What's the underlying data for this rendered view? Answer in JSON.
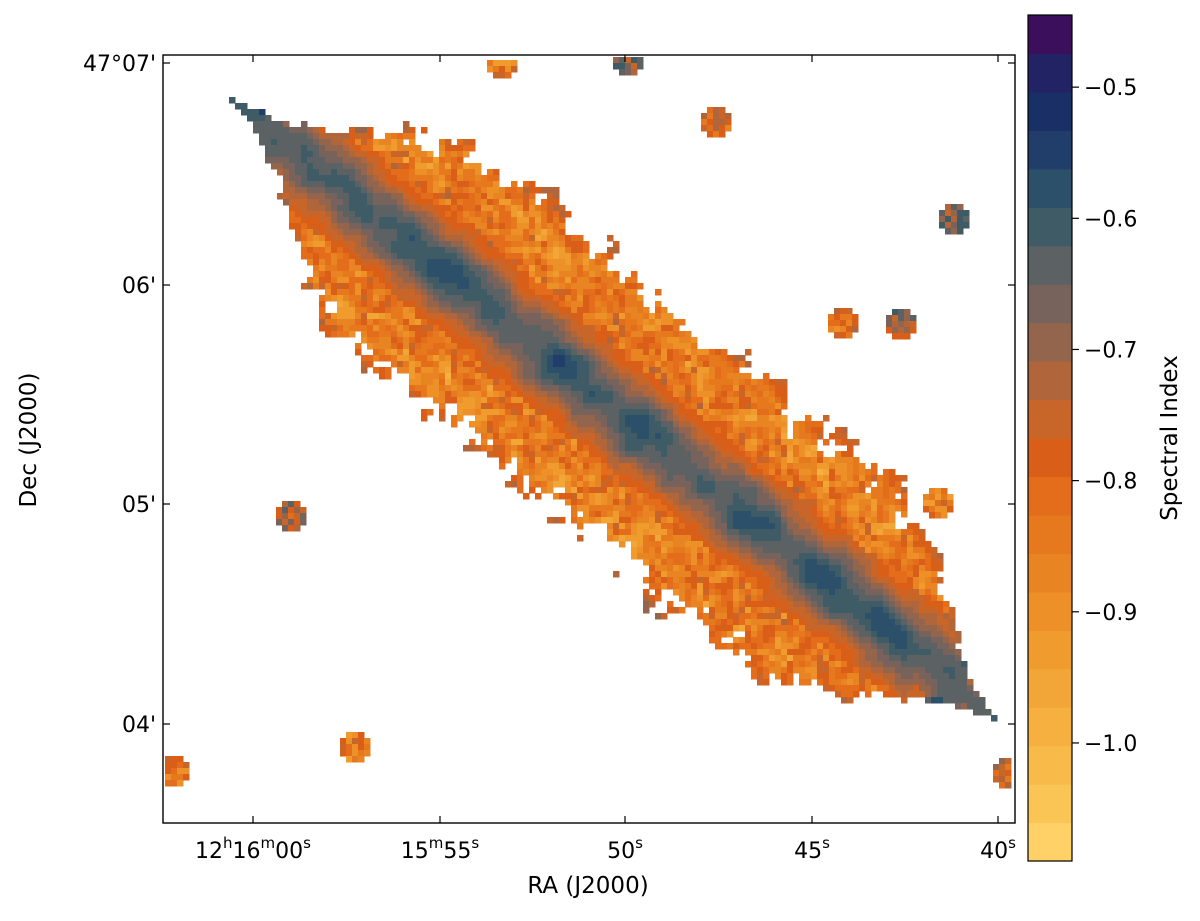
{
  "chart_data": {
    "type": "heatmap",
    "xlabel": "RA (J2000)",
    "ylabel": "Dec (J2000)",
    "colorbar_label": "Spectral Index",
    "x_ticks": [
      {
        "h": "12",
        "m": "16",
        "s": "00",
        "style": "hms"
      },
      {
        "m": "15",
        "s": "55",
        "style": "ms"
      },
      {
        "s": "50",
        "style": "s"
      },
      {
        "s": "45",
        "style": "s"
      },
      {
        "s": "40",
        "style": "s"
      }
    ],
    "y_ticks": [
      "47°07'",
      "06'",
      "05'",
      "04'"
    ],
    "colorbar_ticks": [
      "−0.5",
      "−0.6",
      "−0.7",
      "−0.8",
      "−0.9",
      "−1.0"
    ],
    "colorbar_tick_values": [
      -0.5,
      -0.6,
      -0.7,
      -0.8,
      -0.9,
      -1.0
    ],
    "color_range": [
      -1.09,
      -0.445
    ],
    "colormap_bands": [
      "#ffd166",
      "#fbc555",
      "#f8bb4a",
      "#f5b040",
      "#f2a637",
      "#ef9b2e",
      "#ec9027",
      "#e98422",
      "#e6781e",
      "#e36d1b",
      "#d95f19",
      "#c8662a",
      "#b0663a",
      "#93654c",
      "#77635c",
      "#5c6264",
      "#3f5b66",
      "#2c4f6a",
      "#213e6b",
      "#1a2f66",
      "#222365",
      "#3b0f5c"
    ],
    "grid": false,
    "series": [
      {
        "features": "ridge along galaxy major axis flatter (~-0.6); outer disk steeper (~-0.85 to -1.0)"
      }
    ]
  }
}
